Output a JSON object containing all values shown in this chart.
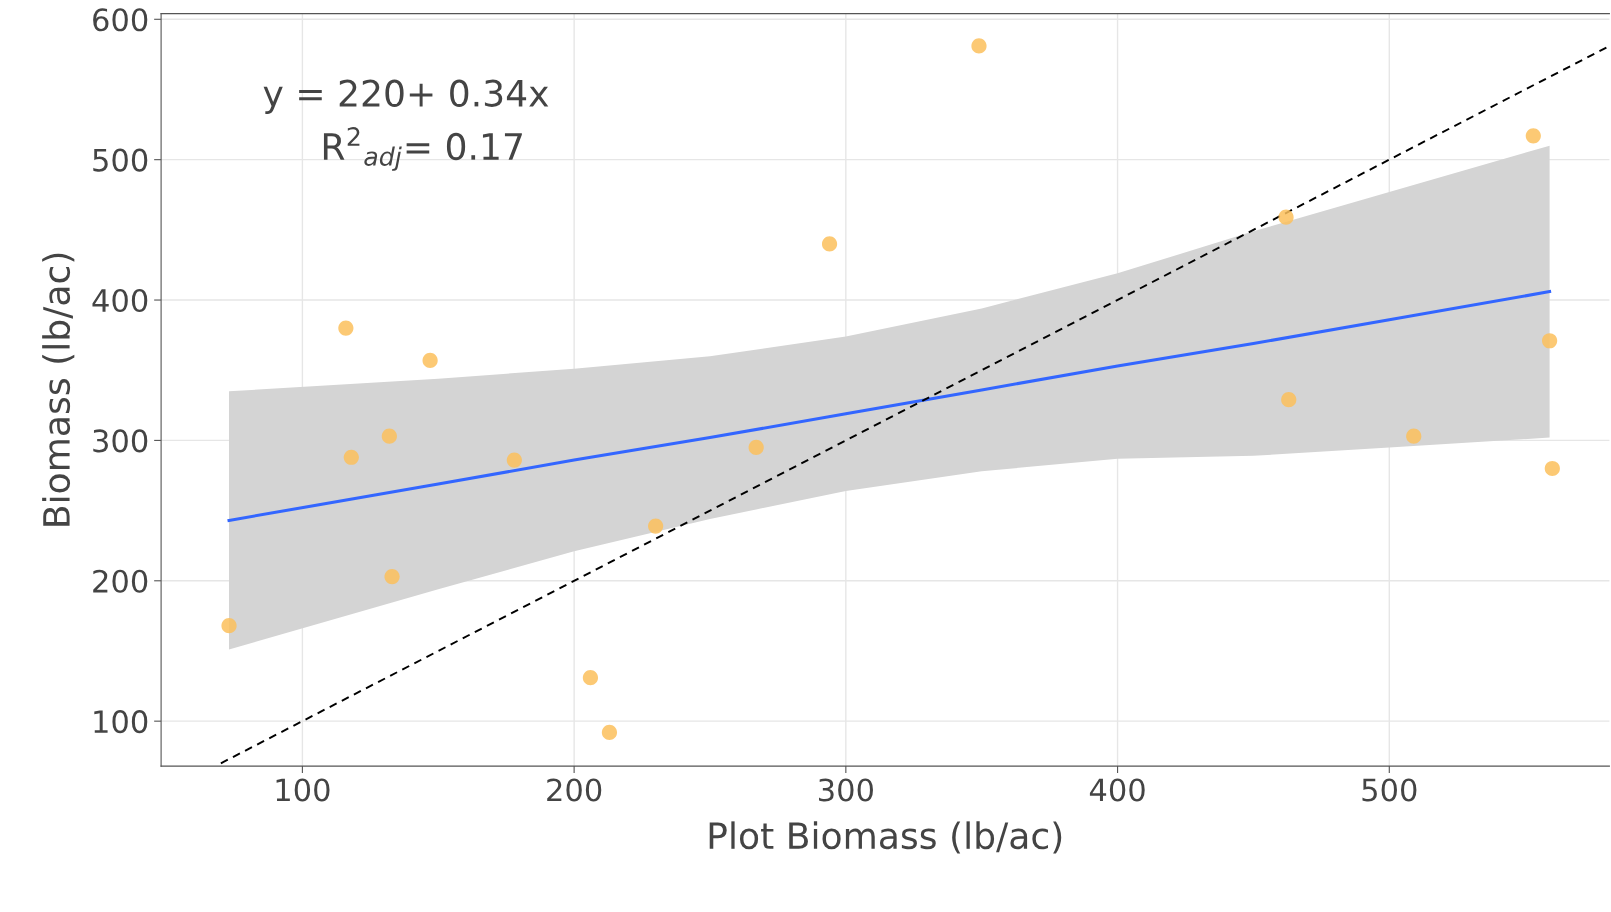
{
  "chart_data": {
    "type": "scatter",
    "xlabel": "Plot Biomass (lb/ac)",
    "ylabel": "Biomass (lb/ac)",
    "xlim": [
      48,
      581
    ],
    "ylim": [
      68,
      604
    ],
    "xticks": [
      100,
      200,
      300,
      400,
      500
    ],
    "yticks": [
      100,
      200,
      300,
      400,
      500,
      600
    ],
    "grid": true,
    "annotations": [
      "y = 220+ 0.34x",
      "R$^{2}$$_{adj}$= 0.17"
    ],
    "series": [
      {
        "type": "line",
        "color": "#3366ff",
        "line_style": "solid",
        "x": [
          73,
          150,
          200,
          250,
          300,
          350,
          400,
          450,
          500,
          559
        ],
        "values": [
          243,
          269,
          286,
          302,
          319,
          336,
          353,
          369,
          386,
          406
        ],
        "lower": [
          151,
          194,
          221,
          244,
          264,
          278,
          287,
          289,
          295,
          302
        ],
        "upper": [
          335,
          344,
          351,
          360,
          374,
          394,
          419,
          449,
          477,
          510
        ]
      },
      {
        "type": "line",
        "color": "#000000",
        "line_style": "dashed",
        "x": [
          70,
          581
        ],
        "values": [
          70,
          581
        ]
      },
      {
        "marker": "circle",
        "color": "#fbbf5c",
        "x": [
          73,
          116,
          118,
          132,
          133,
          147,
          178,
          206,
          213,
          230,
          267,
          294,
          349,
          462,
          463,
          509,
          553,
          559,
          560
        ],
        "values": [
          168,
          380,
          288,
          303,
          203,
          357,
          286,
          131,
          92,
          239,
          295,
          440,
          581,
          459,
          329,
          303,
          517,
          371,
          280
        ]
      }
    ]
  }
}
